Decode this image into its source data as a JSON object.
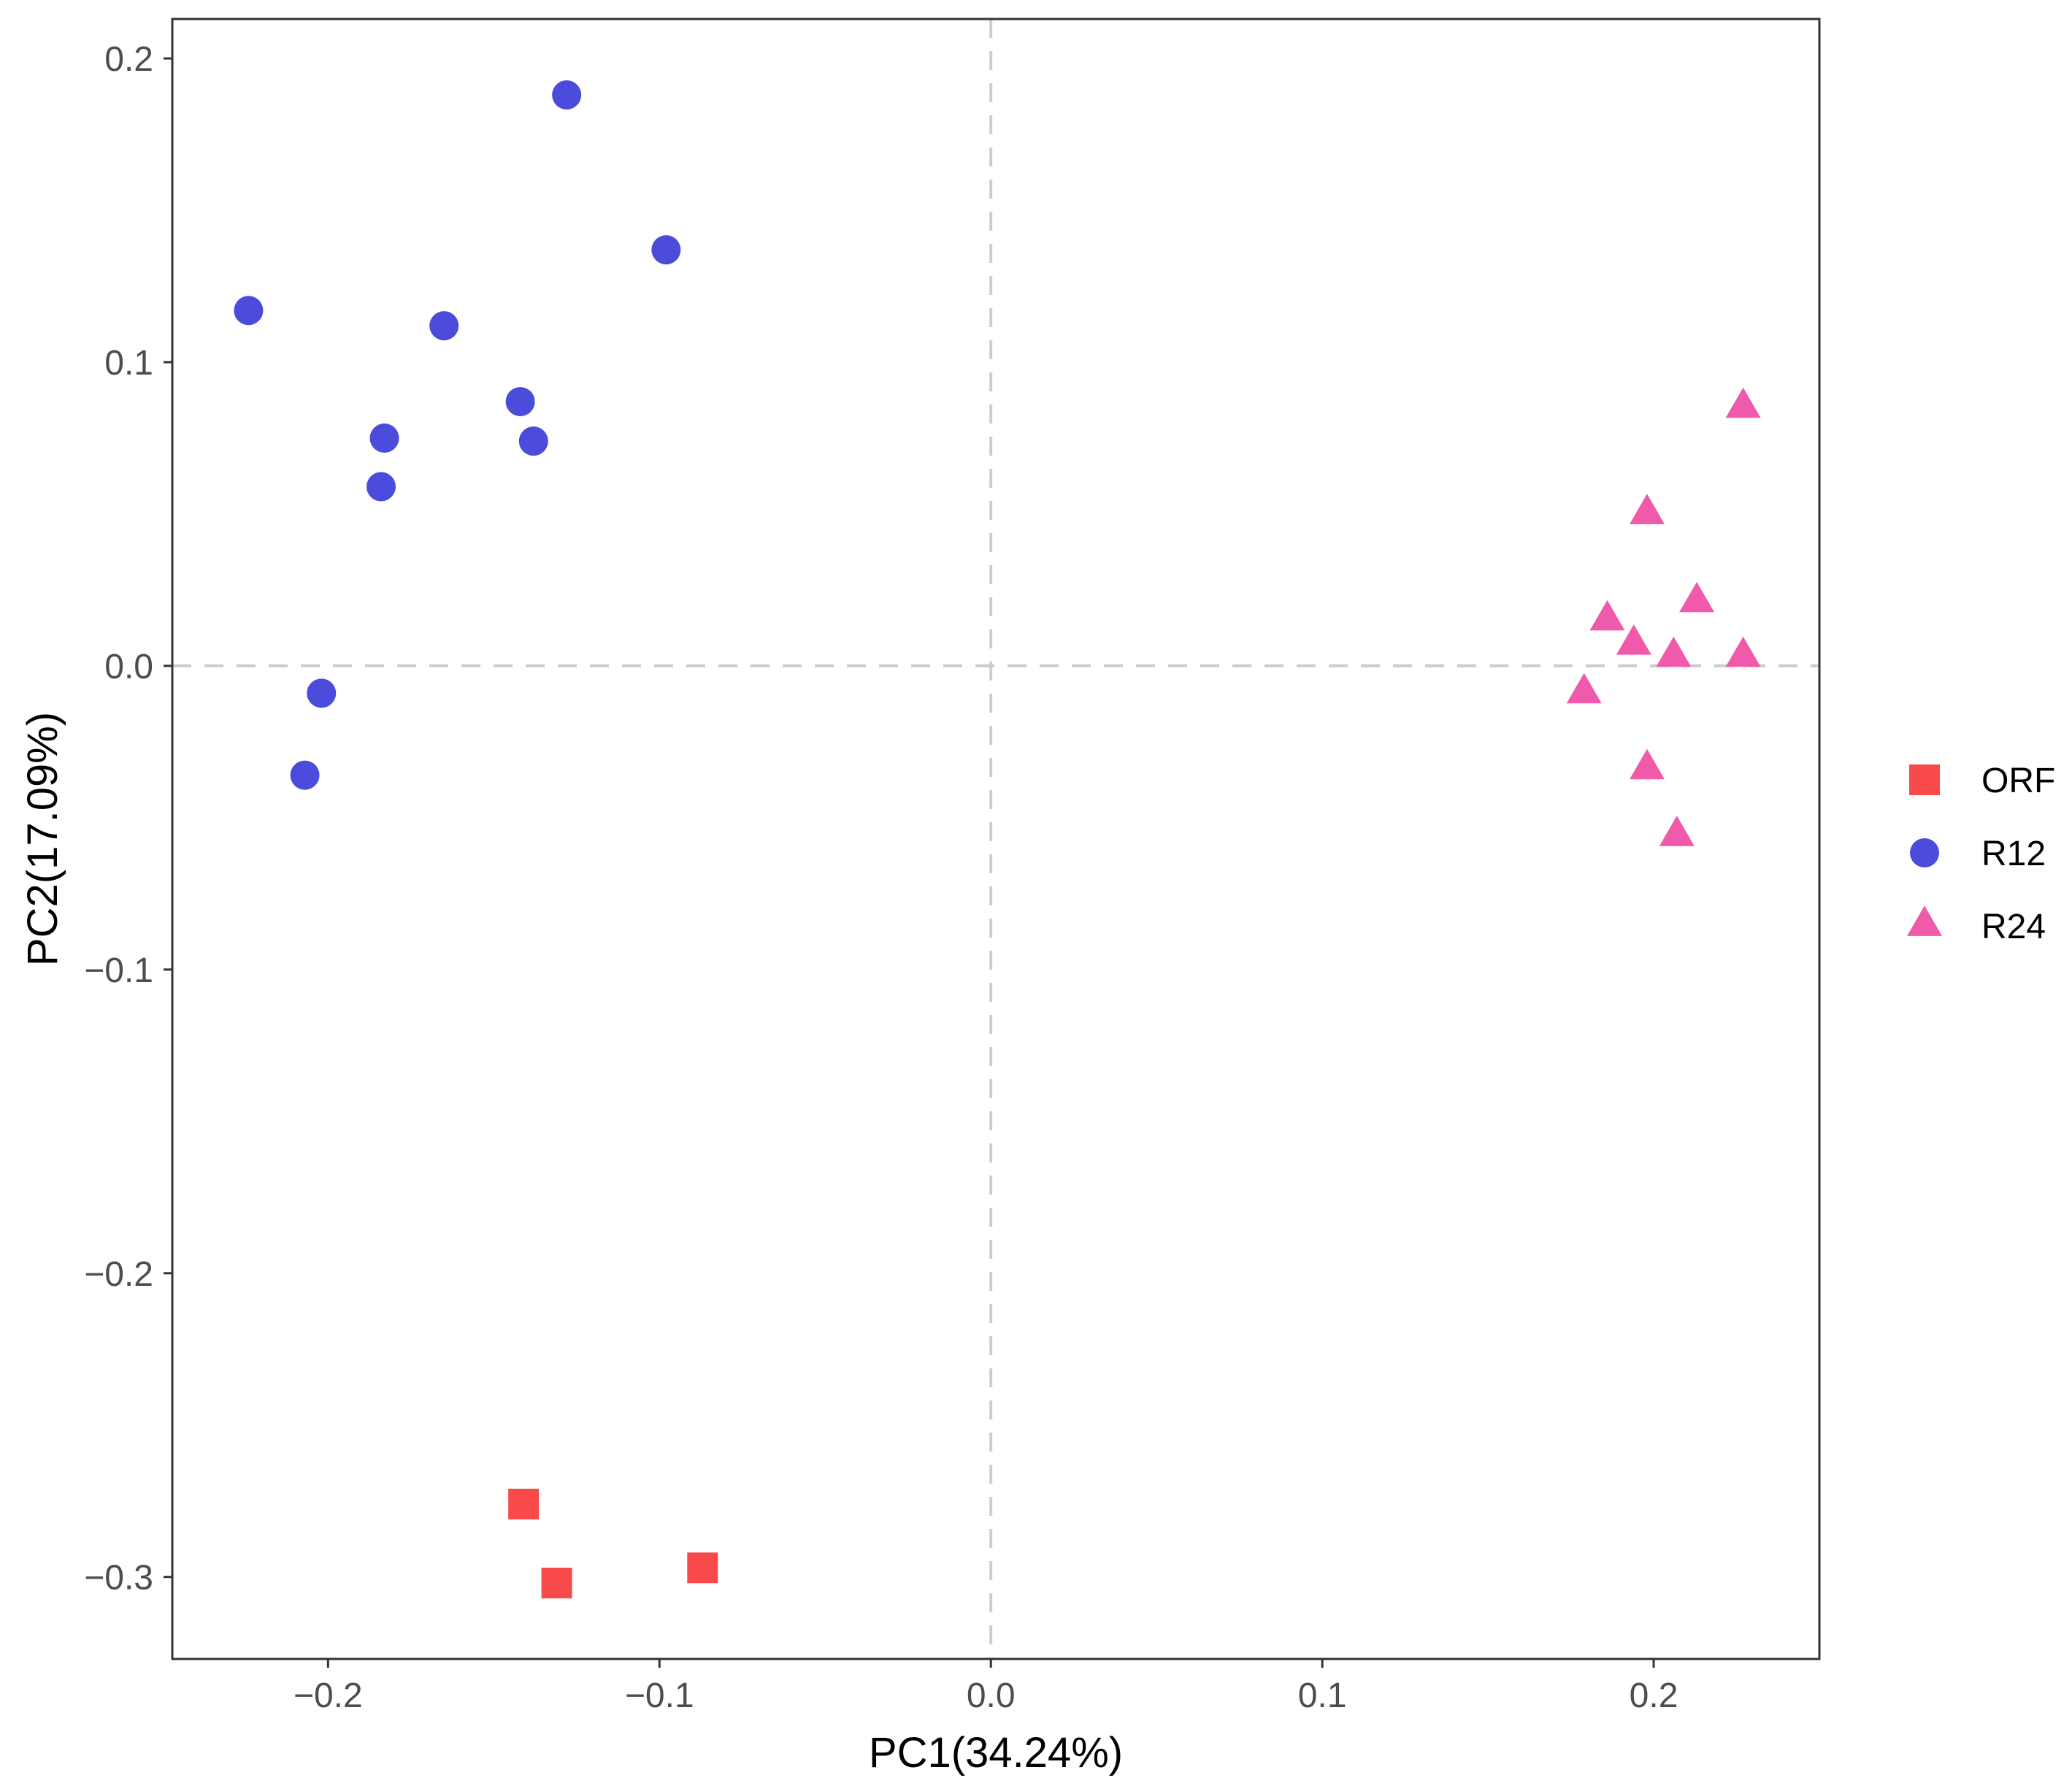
{
  "chart_data": {
    "type": "scatter",
    "title": "",
    "xlabel": "PC1(34.24%)",
    "ylabel": "PC2(17.09%)",
    "xlim": [
      -0.247,
      0.25
    ],
    "ylim": [
      -0.327,
      0.213
    ],
    "xticks": [
      -0.2,
      -0.1,
      0.0,
      0.1,
      0.2
    ],
    "yticks": [
      -0.3,
      -0.2,
      -0.1,
      0.0,
      0.1,
      0.2
    ],
    "xtick_labels": [
      "−0.2",
      "−0.1",
      "0.0",
      "0.1",
      "0.2"
    ],
    "ytick_labels": [
      "−0.3",
      "−0.2",
      "−0.1",
      "0.0",
      "0.1",
      "0.2"
    ],
    "grid": false,
    "reference_lines": {
      "x": 0,
      "y": 0,
      "style": "dashed"
    },
    "legend_position": "right",
    "series": [
      {
        "name": "ORF",
        "shape": "square",
        "color": "#f84a4a",
        "points": [
          [
            -0.141,
            -0.276
          ],
          [
            -0.131,
            -0.302
          ],
          [
            -0.087,
            -0.297
          ]
        ]
      },
      {
        "name": "R12",
        "shape": "circle",
        "color": "#4b4bdc",
        "points": [
          [
            -0.128,
            0.188
          ],
          [
            -0.098,
            0.137
          ],
          [
            -0.224,
            0.117
          ],
          [
            -0.165,
            0.112
          ],
          [
            -0.142,
            0.087
          ],
          [
            -0.138,
            0.074
          ],
          [
            -0.183,
            0.075
          ],
          [
            -0.184,
            0.059
          ],
          [
            -0.202,
            -0.009
          ],
          [
            -0.207,
            -0.036
          ]
        ]
      },
      {
        "name": "R24",
        "shape": "triangle",
        "color": "#f05aaa",
        "points": [
          [
            0.227,
            0.085
          ],
          [
            0.198,
            0.05
          ],
          [
            0.213,
            0.021
          ],
          [
            0.186,
            0.015
          ],
          [
            0.194,
            0.007
          ],
          [
            0.206,
            0.003
          ],
          [
            0.227,
            0.003
          ],
          [
            0.179,
            -0.009
          ],
          [
            0.198,
            -0.034
          ],
          [
            0.207,
            -0.056
          ]
        ]
      }
    ]
  }
}
